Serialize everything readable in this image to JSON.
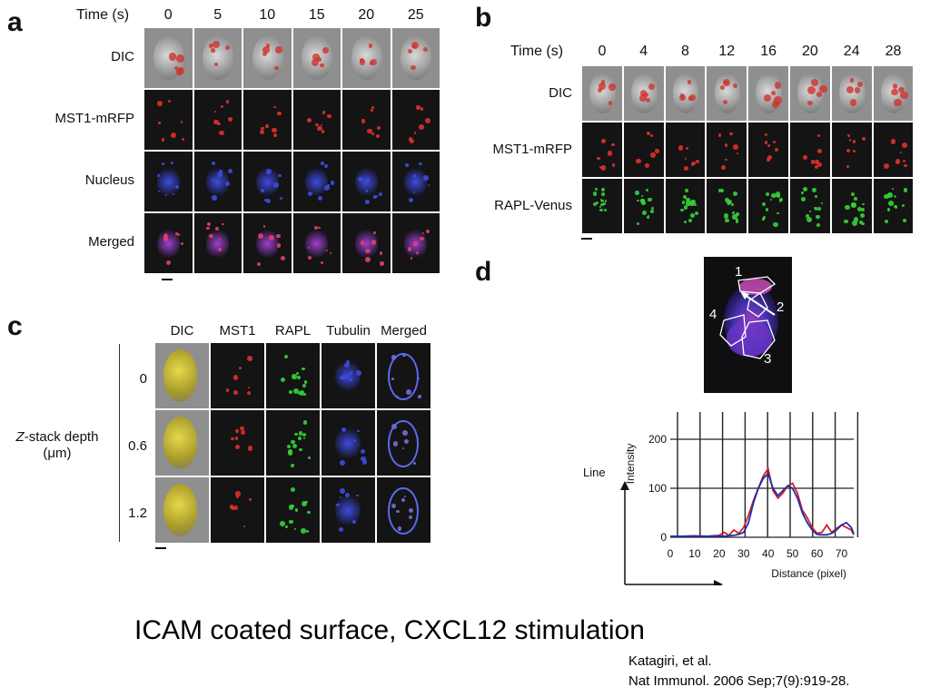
{
  "panel_a": {
    "letter": "a",
    "time_label": "Time (s)",
    "times": [
      "0",
      "5",
      "10",
      "15",
      "20",
      "25"
    ],
    "rows": [
      "DIC",
      "MST1-mRFP",
      "Nucleus",
      "Merged"
    ]
  },
  "panel_b": {
    "letter": "b",
    "time_label": "Time (s)",
    "times": [
      "0",
      "4",
      "8",
      "12",
      "16",
      "20",
      "24",
      "28"
    ],
    "rows": [
      "DIC",
      "MST1-mRFP",
      "RAPL-Venus"
    ]
  },
  "panel_c": {
    "letter": "c",
    "columns": [
      "DIC",
      "MST1",
      "RAPL",
      "Tubulin",
      "Merged"
    ],
    "depths": [
      "0",
      "0.6",
      "1.2"
    ],
    "axis_label_line1": "Z-stack depth",
    "axis_label_line2": "(μm)"
  },
  "panel_d": {
    "letter": "d",
    "regions": [
      "1",
      "2",
      "3",
      "4"
    ],
    "line_label": "Line",
    "colors": {
      "red": "#d62020",
      "blue": "#1a2fb0"
    }
  },
  "chart_data": {
    "type": "line",
    "xlabel": "Distance (pixel)",
    "ylabel": "Intensity",
    "xlim": [
      0,
      75
    ],
    "ylim": [
      0,
      200
    ],
    "xticks": [
      0,
      10,
      20,
      30,
      40,
      50,
      60,
      70
    ],
    "yticks": [
      0,
      100,
      200
    ],
    "grid": true,
    "series": [
      {
        "color": "#d62020",
        "x": [
          0,
          5,
          10,
          15,
          20,
          22,
          24,
          26,
          28,
          30,
          32,
          34,
          36,
          38,
          40,
          42,
          44,
          46,
          48,
          50,
          52,
          54,
          56,
          58,
          60,
          62,
          64,
          66,
          68,
          70,
          72,
          74,
          75
        ],
        "y": [
          2,
          2,
          3,
          2,
          4,
          10,
          4,
          15,
          8,
          20,
          45,
          75,
          100,
          125,
          140,
          95,
          80,
          90,
          105,
          110,
          90,
          55,
          40,
          20,
          8,
          10,
          25,
          10,
          18,
          25,
          20,
          15,
          5
        ]
      },
      {
        "color": "#1a2fb0",
        "x": [
          0,
          5,
          10,
          15,
          20,
          22,
          24,
          26,
          28,
          30,
          32,
          34,
          36,
          38,
          40,
          42,
          44,
          46,
          48,
          50,
          52,
          54,
          56,
          58,
          60,
          62,
          64,
          66,
          68,
          70,
          72,
          74,
          75
        ],
        "y": [
          2,
          2,
          2,
          2,
          2,
          2,
          3,
          4,
          6,
          10,
          30,
          70,
          100,
          120,
          130,
          100,
          85,
          95,
          105,
          100,
          80,
          50,
          30,
          15,
          6,
          5,
          5,
          8,
          15,
          25,
          30,
          20,
          8
        ]
      }
    ]
  },
  "caption": "ICAM coated surface, CXCL12 stimulation",
  "citation_line1": "Katagiri, et al.",
  "citation_line2": "Nat Immunol. 2006 Sep;7(9):919-28."
}
